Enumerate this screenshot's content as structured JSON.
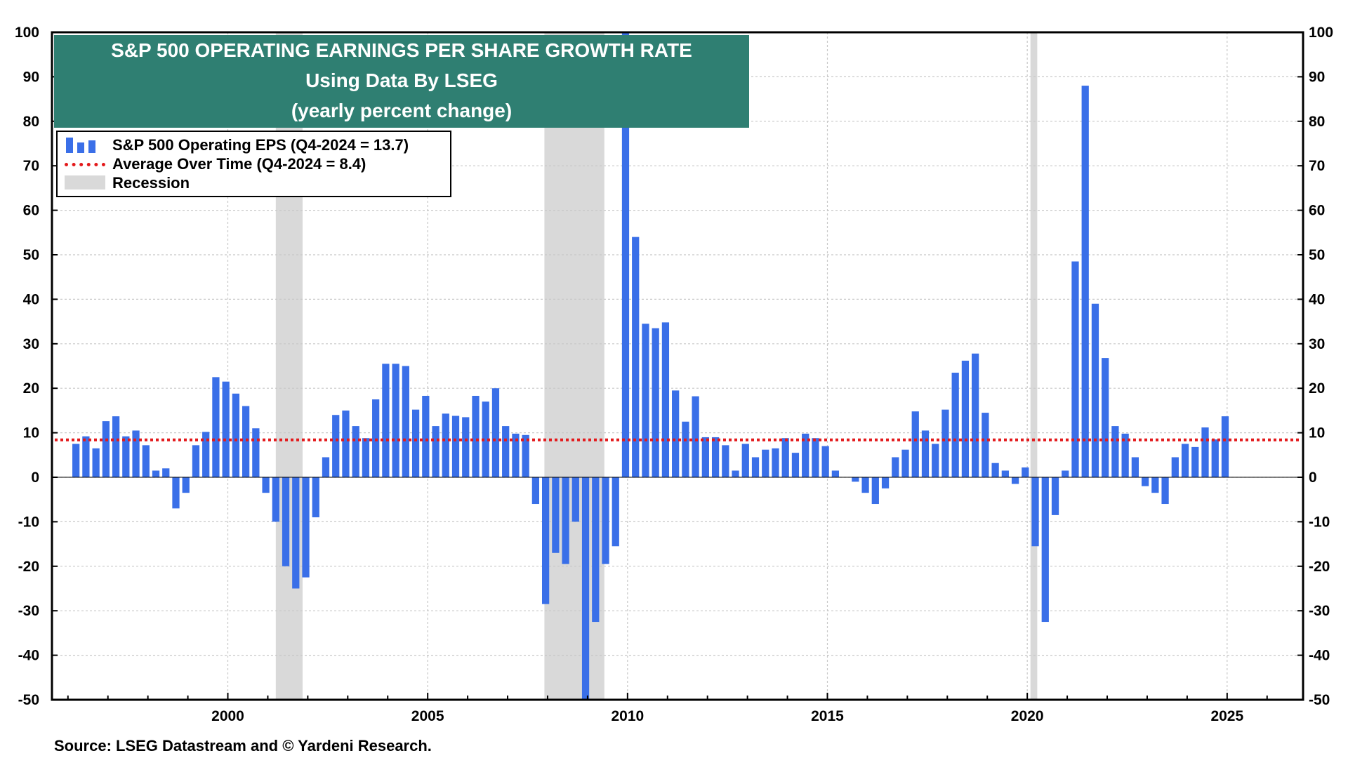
{
  "title": {
    "line1": "S&P 500 OPERATING EARNINGS PER SHARE GROWTH RATE",
    "line2": "Using Data By LSEG",
    "line3": "(yearly percent change)"
  },
  "legend": {
    "eps": "S&P 500 Operating EPS (Q4-2024 = 13.7)",
    "average": "Average Over Time  (Q4-2024 = 8.4)",
    "recession": "Recession"
  },
  "source": "Source: LSEG Datastream and © Yardeni Research.",
  "colors": {
    "bars": "#3a6fe8",
    "average": "#e3191b",
    "recession": "#d9d9d9",
    "title_bg": "#2f7f72"
  },
  "chart_data": {
    "type": "bar",
    "title": "S&P 500 OPERATING EARNINGS PER SHARE GROWTH RATE",
    "subtitle": "Using Data By LSEG (yearly percent change)",
    "xlim": [
      1995.6,
      2026.9
    ],
    "ylim": [
      -50,
      100
    ],
    "y_ticks": [
      100,
      90,
      80,
      70,
      60,
      50,
      40,
      30,
      20,
      10,
      0,
      -10,
      -20,
      -30,
      -40,
      -50
    ],
    "x_ticks": [
      "2000",
      "2005",
      "2010",
      "2015",
      "2020",
      "2025"
    ],
    "grid": true,
    "legend_position": "top-left",
    "average_line": 8.4,
    "recessions": [
      [
        2001.2,
        2001.87
      ],
      [
        2007.92,
        2009.42
      ],
      [
        2020.08,
        2020.25
      ]
    ],
    "series": [
      {
        "name": "S&P 500 Operating EPS (Q4-2024 = 13.7)",
        "start": "1996-Q1",
        "values": [
          7.5,
          9.2,
          6.5,
          12.6,
          13.7,
          9.2,
          10.5,
          7.2,
          1.5,
          2.0,
          -7.0,
          -3.5,
          7.2,
          10.2,
          22.5,
          21.5,
          18.8,
          16.0,
          11.0,
          -3.5,
          -10.0,
          -20.0,
          -25.0,
          -22.5,
          -9.0,
          4.5,
          14.0,
          15.0,
          11.5,
          8.8,
          17.5,
          25.5,
          25.5,
          25.0,
          15.2,
          18.3,
          11.5,
          14.3,
          13.8,
          13.5,
          18.3,
          17.0,
          20.0,
          11.5,
          9.8,
          9.5,
          -6.0,
          -28.5,
          -17.0,
          -19.5,
          -10.0,
          -50.0,
          -32.5,
          -19.5,
          -15.5,
          100.0,
          54.0,
          34.5,
          33.5,
          34.8,
          19.5,
          12.5,
          18.2,
          9.0,
          9.0,
          7.2,
          1.5,
          7.5,
          4.5,
          6.2,
          6.5,
          8.8,
          5.5,
          9.8,
          8.8,
          7.0,
          1.5,
          0.0,
          -1.0,
          -3.5,
          -6.0,
          -2.5,
          4.5,
          6.2,
          14.8,
          10.5,
          7.5,
          15.2,
          23.5,
          26.2,
          27.8,
          14.5,
          3.2,
          1.5,
          -1.5,
          2.2,
          -15.5,
          -32.5,
          -8.5,
          1.5,
          48.5,
          88.0,
          39.0,
          26.8,
          11.5,
          9.8,
          4.5,
          -2.0,
          -3.5,
          -6.0,
          4.5,
          7.5,
          6.8,
          11.2,
          8.5,
          13.7
        ]
      }
    ]
  }
}
